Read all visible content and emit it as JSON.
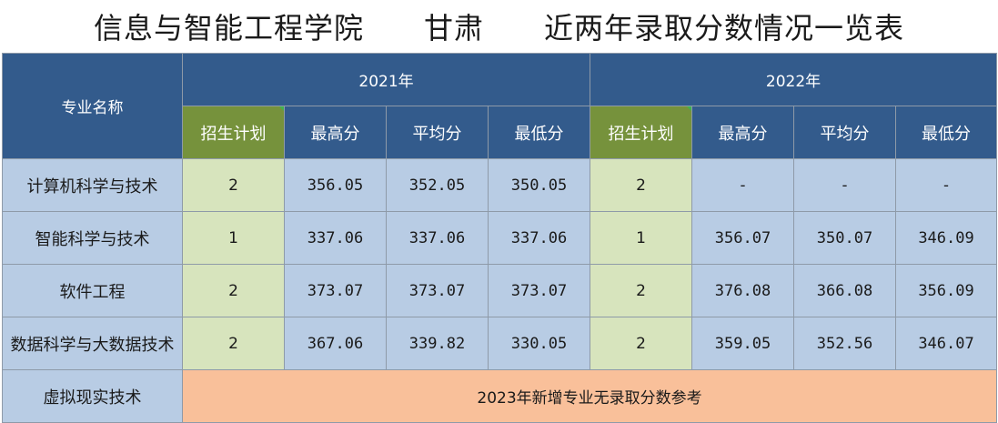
{
  "title": "信息与智能工程学院　　甘肃　　近两年录取分数情况一览表",
  "header": {
    "major_label": "专业名称",
    "year1": "2021年",
    "year2": "2022年",
    "columns": [
      "招生计划",
      "最高分",
      "平均分",
      "最低分"
    ]
  },
  "rows": [
    {
      "name": "计算机科学与技术",
      "y2021": {
        "plan": "2",
        "max": "356.05",
        "avg": "352.05",
        "min": "350.05"
      },
      "y2022": {
        "plan": "2",
        "max": "-",
        "avg": "-",
        "min": "-"
      }
    },
    {
      "name": "智能科学与技术",
      "y2021": {
        "plan": "1",
        "max": "337.06",
        "avg": "337.06",
        "min": "337.06"
      },
      "y2022": {
        "plan": "1",
        "max": "356.07",
        "avg": "350.07",
        "min": "346.09"
      }
    },
    {
      "name": "软件工程",
      "y2021": {
        "plan": "2",
        "max": "373.07",
        "avg": "373.07",
        "min": "373.07"
      },
      "y2022": {
        "plan": "2",
        "max": "376.08",
        "avg": "366.08",
        "min": "356.09"
      }
    },
    {
      "name": "数据科学与大数据技术",
      "y2021": {
        "plan": "2",
        "max": "367.06",
        "avg": "339.82",
        "min": "330.05"
      },
      "y2022": {
        "plan": "2",
        "max": "359.05",
        "avg": "352.56",
        "min": "346.07"
      }
    }
  ],
  "last_row": {
    "name": "虚拟现实技术",
    "note": "2023年新增专业无录取分数参考"
  },
  "colors": {
    "header_blue": "#335b8c",
    "plan_header_green": "#76923c",
    "plan_cell_green": "#d7e4bd",
    "cell_blue": "#b8cce4",
    "note_orange": "#f9c09a"
  }
}
